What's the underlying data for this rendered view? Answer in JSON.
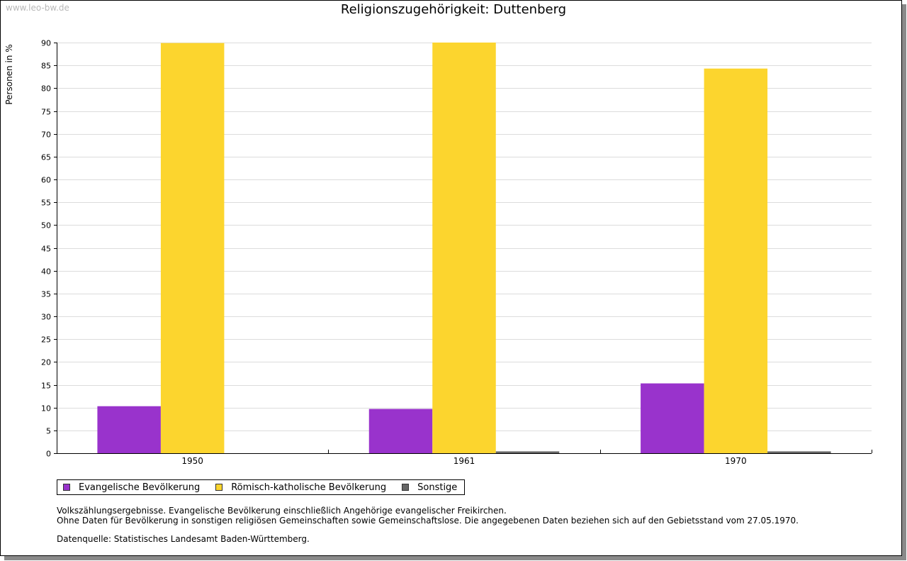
{
  "watermark": "www.leo-bw.de",
  "chart_data": {
    "type": "bar",
    "title": "Religionszugehörigkeit: Duttenberg",
    "ylabel": "Personen in %",
    "xlabel": "",
    "categories": [
      "1950",
      "1961",
      "1970"
    ],
    "ylim": [
      0,
      90
    ],
    "yticks": [
      0,
      5,
      10,
      15,
      20,
      25,
      30,
      35,
      40,
      45,
      50,
      55,
      60,
      65,
      70,
      75,
      80,
      85,
      90
    ],
    "grid": true,
    "legend_position": "bottom",
    "series": [
      {
        "name": "Evangelische Bevölkerung",
        "color": "#9933cc",
        "values": [
          10.3,
          9.7,
          15.3
        ]
      },
      {
        "name": "Römisch-katholische Bevölkerung",
        "color": "#fcd52e",
        "values": [
          89.9,
          90.0,
          84.3
        ]
      },
      {
        "name": "Sonstige",
        "color": "#666666",
        "values": [
          0.0,
          0.4,
          0.4
        ]
      }
    ]
  },
  "notes": {
    "line1": "Volkszählungsergebnisse. Evangelische Bevölkerung einschließlich Angehörige evangelischer Freikirchen.",
    "line2": "Ohne Daten für Bevölkerung in sonstigen religiösen Gemeinschaften sowie Gemeinschaftslose. Die angegebenen Daten beziehen sich auf den Gebietsstand vom 27.05.1970.",
    "source": "Datenquelle: Statistisches Landesamt Baden-Württemberg."
  }
}
